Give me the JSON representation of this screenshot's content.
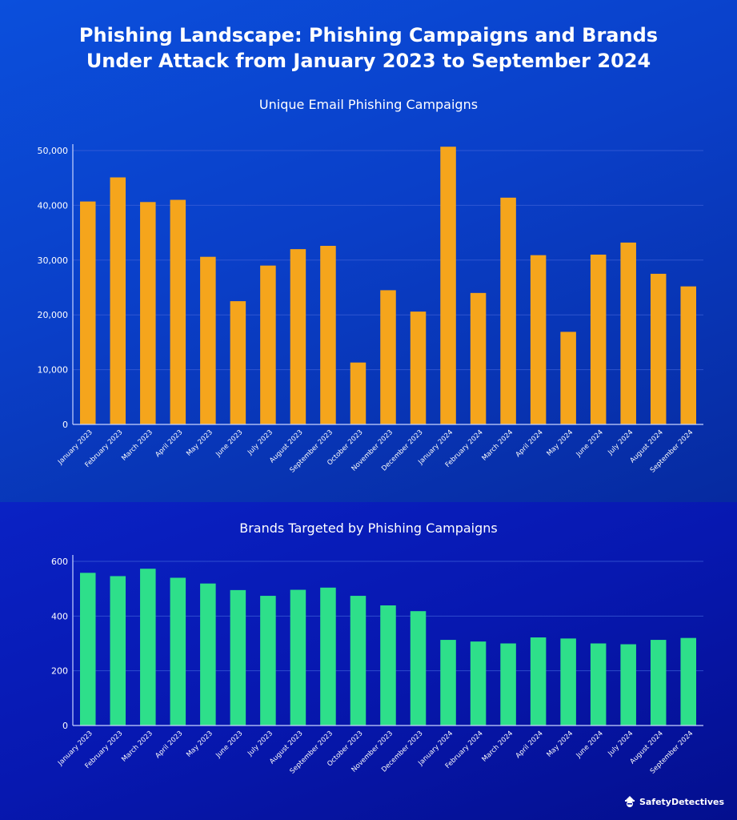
{
  "title_line1": "Phishing Landscape: Phishing Campaigns and Brands",
  "title_line2": "Under Attack from January 2023 to September 2024",
  "brand_name": "SafetyDetectives",
  "brand_icon": "detective-icon",
  "colors": {
    "bar1": "#f5a51c",
    "bar2": "#2edf8a",
    "axis": "#c9d4ff",
    "grid": "#3f63d8"
  },
  "chart_data": [
    {
      "type": "bar",
      "title": "Unique Email Phishing Campaigns",
      "categories": [
        "January 2023",
        "February 2023",
        "March 2023",
        "April 2023",
        "May 2023",
        "June 2023",
        "July 2023",
        "August 2023",
        "September 2023",
        "October 2023",
        "November 2023",
        "December 2023",
        "January 2024",
        "February 2024",
        "March 2024",
        "April 2024",
        "May 2024",
        "June 2024",
        "July 2024",
        "August 2024",
        "September 2024"
      ],
      "values": [
        40700,
        45100,
        40600,
        41000,
        30600,
        22500,
        29000,
        32000,
        32600,
        11300,
        24500,
        20600,
        50700,
        24000,
        41400,
        30900,
        16900,
        31000,
        33200,
        27500,
        25200
      ],
      "ylim": [
        0,
        50000
      ],
      "yticks": [
        0,
        10000,
        20000,
        30000,
        40000,
        50000
      ],
      "ytick_labels": [
        "0",
        "10,000",
        "20,000",
        "30,000",
        "40,000",
        "50,000"
      ],
      "xlabel": "",
      "ylabel": "",
      "grid": true
    },
    {
      "type": "bar",
      "title": "Brands Targeted by Phishing Campaigns",
      "categories": [
        "January 2023",
        "February 2023",
        "March 2023",
        "April 2023",
        "May 2023",
        "June 2023",
        "July 2023",
        "August 2023",
        "September 2023",
        "October 2023",
        "November 2023",
        "December 2023",
        "January 2024",
        "February 2024",
        "March 2024",
        "April 2024",
        "May 2024",
        "June 2024",
        "July 2024",
        "August 2024",
        "September 2024"
      ],
      "values": [
        558,
        546,
        573,
        540,
        519,
        495,
        474,
        496,
        504,
        474,
        439,
        418,
        313,
        307,
        300,
        322,
        318,
        300,
        297,
        313,
        320
      ],
      "ylim": [
        0,
        600
      ],
      "yticks": [
        0,
        200,
        400,
        600
      ],
      "ytick_labels": [
        "0",
        "200",
        "400",
        "600"
      ],
      "xlabel": "",
      "ylabel": "",
      "grid": true
    }
  ]
}
